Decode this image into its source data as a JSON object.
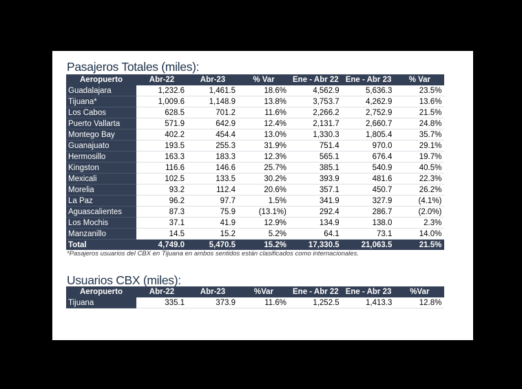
{
  "passengers": {
    "title": "Pasajeros Totales (miles):",
    "headers": [
      "Aeropuerto",
      "Abr-22",
      "Abr-23",
      "% Var",
      "Ene - Abr 22",
      "Ene - Abr 23",
      "% Var"
    ],
    "rows": [
      [
        "Guadalajara",
        "1,232.6",
        "1,461.5",
        "18.6%",
        "4,562.9",
        "5,636.3",
        "23.5%"
      ],
      [
        "Tijuana*",
        "1,009.6",
        "1,148.9",
        "13.8%",
        "3,753.7",
        "4,262.9",
        "13.6%"
      ],
      [
        "Los Cabos",
        "628.5",
        "701.2",
        "11.6%",
        "2,266.2",
        "2,752.9",
        "21.5%"
      ],
      [
        "Puerto Vallarta",
        "571.9",
        "642.9",
        "12.4%",
        "2,131.7",
        "2,660.7",
        "24.8%"
      ],
      [
        "Montego Bay",
        "402.2",
        "454.4",
        "13.0%",
        "1,330.3",
        "1,805.4",
        "35.7%"
      ],
      [
        "Guanajuato",
        "193.5",
        "255.3",
        "31.9%",
        "751.4",
        "970.0",
        "29.1%"
      ],
      [
        "Hermosillo",
        "163.3",
        "183.3",
        "12.3%",
        "565.1",
        "676.4",
        "19.7%"
      ],
      [
        "Kingston",
        "116.6",
        "146.6",
        "25.7%",
        "385.1",
        "540.9",
        "40.5%"
      ],
      [
        "Mexicali",
        "102.5",
        "133.5",
        "30.2%",
        "393.9",
        "481.6",
        "22.3%"
      ],
      [
        "Morelia",
        "93.2",
        "112.4",
        "20.6%",
        "357.1",
        "450.7",
        "26.2%"
      ],
      [
        "La Paz",
        "96.2",
        "97.7",
        "1.5%",
        "341.9",
        "327.9",
        "(4.1%)"
      ],
      [
        "Aguascalientes",
        "87.3",
        "75.9",
        "(13.1%)",
        "292.4",
        "286.7",
        "(2.0%)"
      ],
      [
        "Los Mochis",
        "37.1",
        "41.9",
        "12.9%",
        "134.9",
        "138.0",
        "2.3%"
      ],
      [
        "Manzanillo",
        "14.5",
        "15.2",
        "5.2%",
        "64.1",
        "73.1",
        "14.0%"
      ]
    ],
    "total": [
      "Total",
      "4,749.0",
      "5,470.5",
      "15.2%",
      "17,330.5",
      "21,063.5",
      "21.5%"
    ],
    "footnote": "*Pasajeros usuarios del CBX en Tijuana en ambos sentidos están clasificados como internacionales."
  },
  "cbx": {
    "title": "Usuarios CBX (miles):",
    "headers": [
      "Aeropuerto",
      "Abr-22",
      "Abr-23",
      "%Var",
      "Ene - Abr 22",
      "Ene - Abr 23",
      "%Var"
    ],
    "rows": [
      [
        "Tijuana",
        "335.1",
        "373.9",
        "11.6%",
        "1,252.5",
        "1,413.3",
        "12.8%"
      ]
    ]
  },
  "colors": {
    "header_bg": "#333f54",
    "title": "#1f3249",
    "background": "#000000",
    "sheet": "#ffffff"
  }
}
